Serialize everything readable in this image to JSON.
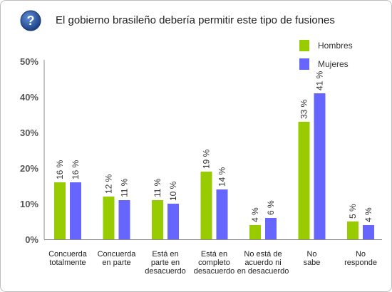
{
  "header": {
    "title": "El gobierno brasileño debería permitir este tipo de fusiones",
    "icon": "question-mark-icon",
    "icon_glyph": "?"
  },
  "chart_data": {
    "type": "bar",
    "title": "El gobierno brasileño debería permitir este tipo de fusiones",
    "xlabel": "",
    "ylabel": "",
    "ylim": [
      0,
      50
    ],
    "yticks": [
      {
        "value": 0,
        "label": "0%"
      },
      {
        "value": 10,
        "label": "10%"
      },
      {
        "value": 20,
        "label": "20%"
      },
      {
        "value": 30,
        "label": "30%"
      },
      {
        "value": 40,
        "label": "40%"
      },
      {
        "value": 50,
        "label": "50%"
      }
    ],
    "grid": false,
    "legend_position": "top-right",
    "categories": [
      [
        "Concuerda",
        "totalmente"
      ],
      [
        "Concuerda",
        "en parte"
      ],
      [
        "Está en",
        "parte en",
        "desacuerdo"
      ],
      [
        "Está en",
        "completo",
        "desacuerdo"
      ],
      [
        "No está de",
        "acuerdo ni",
        "en desacuerdo"
      ],
      [
        "No",
        "sabe"
      ],
      [
        "No",
        "responde"
      ]
    ],
    "series": [
      {
        "name": "Hombres",
        "color": "#99cc00",
        "values": [
          16,
          12,
          11,
          19,
          4,
          33,
          5
        ],
        "labels": [
          "16 %",
          "12 %",
          "11 %",
          "19 %",
          "4 %",
          "33 %",
          "5 %"
        ]
      },
      {
        "name": "Mujeres",
        "color": "#6666ff",
        "values": [
          16,
          11,
          10,
          14,
          6,
          41,
          4
        ],
        "labels": [
          "16 %",
          "11 %",
          "10 %",
          "14 %",
          "6 %",
          "41 %",
          "4 %"
        ]
      }
    ]
  }
}
